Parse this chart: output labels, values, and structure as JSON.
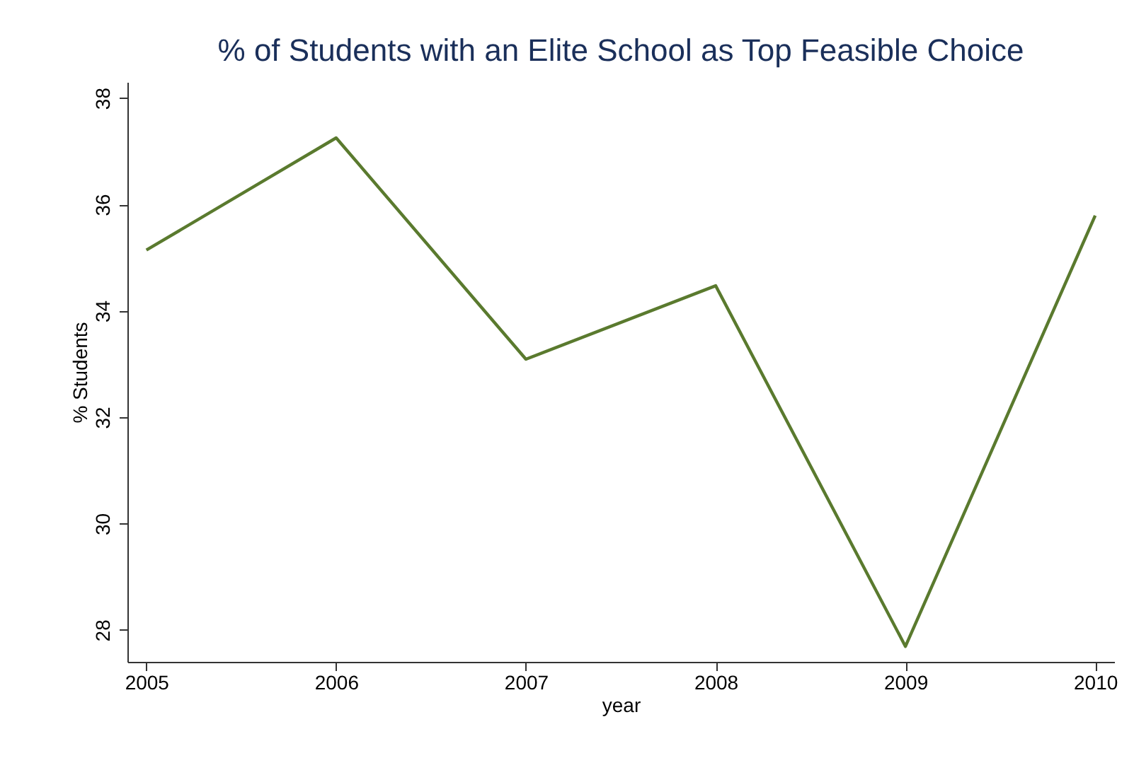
{
  "chart_data": {
    "type": "line",
    "title": "% of Students with an Elite School as Top Feasible Choice",
    "xlabel": "year",
    "ylabel": "% Students",
    "x": [
      2005,
      2006,
      2007,
      2008,
      2009,
      2010
    ],
    "series": [
      {
        "color": "#5a7a2e",
        "values": [
          35.14,
          37.25,
          33.09,
          34.47,
          27.69,
          35.79
        ]
      }
    ],
    "xlim": [
      2004.9,
      2010.1
    ],
    "xticks": [
      2005,
      2006,
      2007,
      2008,
      2009,
      2010
    ],
    "ylim": [
      27.4,
      38.3
    ],
    "yticks": [
      28,
      30,
      32,
      34,
      36,
      38
    ],
    "grid": false,
    "marker": "none",
    "line_style": "solid"
  }
}
